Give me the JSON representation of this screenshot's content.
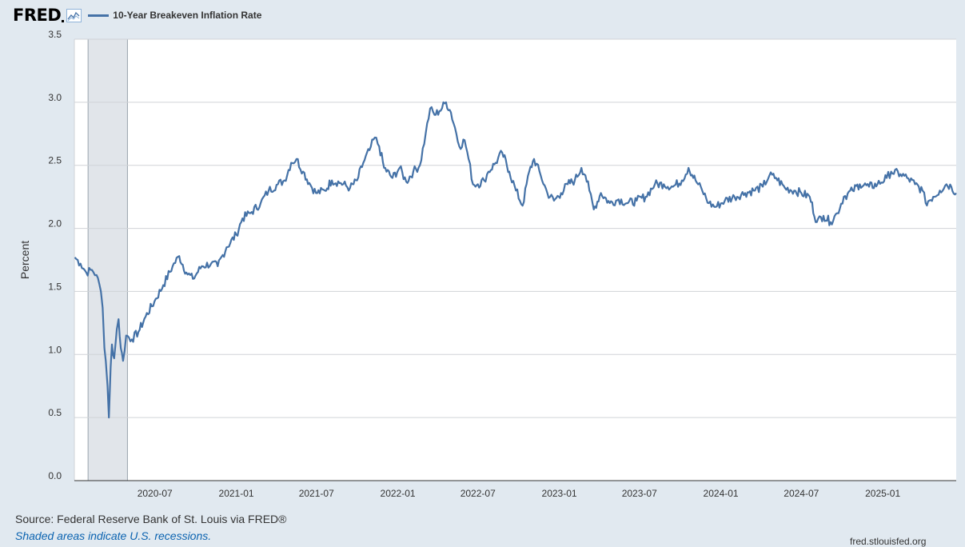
{
  "header": {
    "logo_text": "FRED",
    "logo_icon": "line-graph-icon"
  },
  "chart_data": {
    "type": "line",
    "title": "",
    "xlabel": "",
    "ylabel": "Percent",
    "ylim": [
      0.0,
      3.5
    ],
    "y_ticks": [
      "0.0",
      "0.5",
      "1.0",
      "1.5",
      "2.0",
      "2.5",
      "3.0",
      "3.5"
    ],
    "x_range": [
      "2020-01-01",
      "2025-06-16"
    ],
    "x_ticks": [
      {
        "date": "2020-07-01",
        "label": "2020-07"
      },
      {
        "date": "2021-01-01",
        "label": "2021-01"
      },
      {
        "date": "2021-07-01",
        "label": "2021-07"
      },
      {
        "date": "2022-01-01",
        "label": "2022-01"
      },
      {
        "date": "2022-07-01",
        "label": "2022-07"
      },
      {
        "date": "2023-01-01",
        "label": "2023-01"
      },
      {
        "date": "2023-07-01",
        "label": "2023-07"
      },
      {
        "date": "2024-01-01",
        "label": "2024-01"
      },
      {
        "date": "2024-07-01",
        "label": "2024-07"
      },
      {
        "date": "2025-01-01",
        "label": "2025-01"
      }
    ],
    "grid": true,
    "legend_position": "top-left",
    "recessions": [
      {
        "start": "2020-02-01",
        "end": "2020-04-30"
      }
    ],
    "series": [
      {
        "name": "10-Year Breakeven Inflation Rate",
        "color": "#4572a7",
        "points": [
          [
            "2020-01-02",
            1.77
          ],
          [
            "2020-01-15",
            1.72
          ],
          [
            "2020-01-28",
            1.65
          ],
          [
            "2020-02-10",
            1.67
          ],
          [
            "2020-02-20",
            1.63
          ],
          [
            "2020-03-01",
            1.5
          ],
          [
            "2020-03-05",
            1.37
          ],
          [
            "2020-03-09",
            1.05
          ],
          [
            "2020-03-12",
            0.95
          ],
          [
            "2020-03-16",
            0.75
          ],
          [
            "2020-03-19",
            0.5
          ],
          [
            "2020-03-23",
            0.9
          ],
          [
            "2020-03-26",
            1.08
          ],
          [
            "2020-03-31",
            0.97
          ],
          [
            "2020-04-06",
            1.2
          ],
          [
            "2020-04-10",
            1.28
          ],
          [
            "2020-04-15",
            1.05
          ],
          [
            "2020-04-20",
            0.95
          ],
          [
            "2020-04-27",
            1.15
          ],
          [
            "2020-05-10",
            1.12
          ],
          [
            "2020-05-25",
            1.18
          ],
          [
            "2020-06-10",
            1.3
          ],
          [
            "2020-06-30",
            1.42
          ],
          [
            "2020-07-20",
            1.55
          ],
          [
            "2020-08-10",
            1.7
          ],
          [
            "2020-08-25",
            1.78
          ],
          [
            "2020-09-10",
            1.65
          ],
          [
            "2020-09-25",
            1.6
          ],
          [
            "2020-10-15",
            1.7
          ],
          [
            "2020-11-05",
            1.72
          ],
          [
            "2020-11-20",
            1.7
          ],
          [
            "2020-12-10",
            1.85
          ],
          [
            "2021-01-01",
            1.95
          ],
          [
            "2021-01-15",
            2.08
          ],
          [
            "2021-02-05",
            2.13
          ],
          [
            "2021-02-25",
            2.2
          ],
          [
            "2021-03-15",
            2.3
          ],
          [
            "2021-04-05",
            2.35
          ],
          [
            "2021-04-20",
            2.38
          ],
          [
            "2021-05-05",
            2.52
          ],
          [
            "2021-05-17",
            2.55
          ],
          [
            "2021-06-01",
            2.45
          ],
          [
            "2021-06-15",
            2.36
          ],
          [
            "2021-06-30",
            2.28
          ],
          [
            "2021-07-20",
            2.3
          ],
          [
            "2021-08-05",
            2.38
          ],
          [
            "2021-08-25",
            2.36
          ],
          [
            "2021-09-15",
            2.32
          ],
          [
            "2021-10-01",
            2.38
          ],
          [
            "2021-10-15",
            2.52
          ],
          [
            "2021-10-29",
            2.62
          ],
          [
            "2021-11-10",
            2.72
          ],
          [
            "2021-11-20",
            2.65
          ],
          [
            "2021-12-01",
            2.48
          ],
          [
            "2021-12-20",
            2.4
          ],
          [
            "2022-01-05",
            2.48
          ],
          [
            "2022-01-20",
            2.37
          ],
          [
            "2022-02-05",
            2.45
          ],
          [
            "2022-02-20",
            2.5
          ],
          [
            "2022-03-05",
            2.75
          ],
          [
            "2022-03-15",
            2.95
          ],
          [
            "2022-03-25",
            2.9
          ],
          [
            "2022-04-05",
            2.93
          ],
          [
            "2022-04-20",
            3.0
          ],
          [
            "2022-05-01",
            2.92
          ],
          [
            "2022-05-10",
            2.8
          ],
          [
            "2022-05-20",
            2.65
          ],
          [
            "2022-06-01",
            2.7
          ],
          [
            "2022-06-10",
            2.55
          ],
          [
            "2022-06-20",
            2.35
          ],
          [
            "2022-07-01",
            2.35
          ],
          [
            "2022-07-15",
            2.38
          ],
          [
            "2022-07-25",
            2.45
          ],
          [
            "2022-08-10",
            2.52
          ],
          [
            "2022-08-25",
            2.6
          ],
          [
            "2022-09-10",
            2.45
          ],
          [
            "2022-09-25",
            2.3
          ],
          [
            "2022-10-10",
            2.18
          ],
          [
            "2022-10-25",
            2.45
          ],
          [
            "2022-11-05",
            2.55
          ],
          [
            "2022-11-20",
            2.42
          ],
          [
            "2022-12-05",
            2.28
          ],
          [
            "2022-12-20",
            2.22
          ],
          [
            "2023-01-05",
            2.28
          ],
          [
            "2023-01-20",
            2.35
          ],
          [
            "2023-02-05",
            2.38
          ],
          [
            "2023-02-20",
            2.48
          ],
          [
            "2023-03-01",
            2.42
          ],
          [
            "2023-03-10",
            2.3
          ],
          [
            "2023-03-20",
            2.15
          ],
          [
            "2023-04-05",
            2.28
          ],
          [
            "2023-04-25",
            2.2
          ],
          [
            "2023-05-15",
            2.23
          ],
          [
            "2023-06-05",
            2.2
          ],
          [
            "2023-06-25",
            2.22
          ],
          [
            "2023-07-15",
            2.25
          ],
          [
            "2023-08-05",
            2.35
          ],
          [
            "2023-08-25",
            2.35
          ],
          [
            "2023-09-15",
            2.33
          ],
          [
            "2023-10-05",
            2.38
          ],
          [
            "2023-10-20",
            2.48
          ],
          [
            "2023-11-05",
            2.38
          ],
          [
            "2023-11-20",
            2.3
          ],
          [
            "2023-12-05",
            2.2
          ],
          [
            "2023-12-20",
            2.17
          ],
          [
            "2024-01-10",
            2.22
          ],
          [
            "2024-02-01",
            2.25
          ],
          [
            "2024-02-25",
            2.28
          ],
          [
            "2024-03-15",
            2.3
          ],
          [
            "2024-04-05",
            2.33
          ],
          [
            "2024-04-20",
            2.42
          ],
          [
            "2024-05-05",
            2.4
          ],
          [
            "2024-05-25",
            2.32
          ],
          [
            "2024-06-15",
            2.3
          ],
          [
            "2024-07-01",
            2.28
          ],
          [
            "2024-07-20",
            2.25
          ],
          [
            "2024-08-05",
            2.05
          ],
          [
            "2024-08-20",
            2.1
          ],
          [
            "2024-09-05",
            2.05
          ],
          [
            "2024-09-20",
            2.12
          ],
          [
            "2024-10-05",
            2.25
          ],
          [
            "2024-10-25",
            2.3
          ],
          [
            "2024-11-10",
            2.35
          ],
          [
            "2024-12-01",
            2.33
          ],
          [
            "2024-12-20",
            2.35
          ],
          [
            "2025-01-10",
            2.4
          ],
          [
            "2025-01-20",
            2.45
          ],
          [
            "2025-02-10",
            2.43
          ],
          [
            "2025-02-25",
            2.4
          ],
          [
            "2025-03-15",
            2.35
          ],
          [
            "2025-04-01",
            2.3
          ],
          [
            "2025-04-08",
            2.2
          ],
          [
            "2025-04-25",
            2.25
          ],
          [
            "2025-05-10",
            2.3
          ],
          [
            "2025-05-25",
            2.35
          ],
          [
            "2025-06-05",
            2.33
          ],
          [
            "2025-06-16",
            2.28
          ]
        ]
      }
    ]
  },
  "footer": {
    "source": "Source: Federal Reserve Bank of St. Louis via FRED®",
    "note": "Shaded areas indicate U.S. recessions.",
    "right_text": "fred.stlouisfed.org"
  }
}
